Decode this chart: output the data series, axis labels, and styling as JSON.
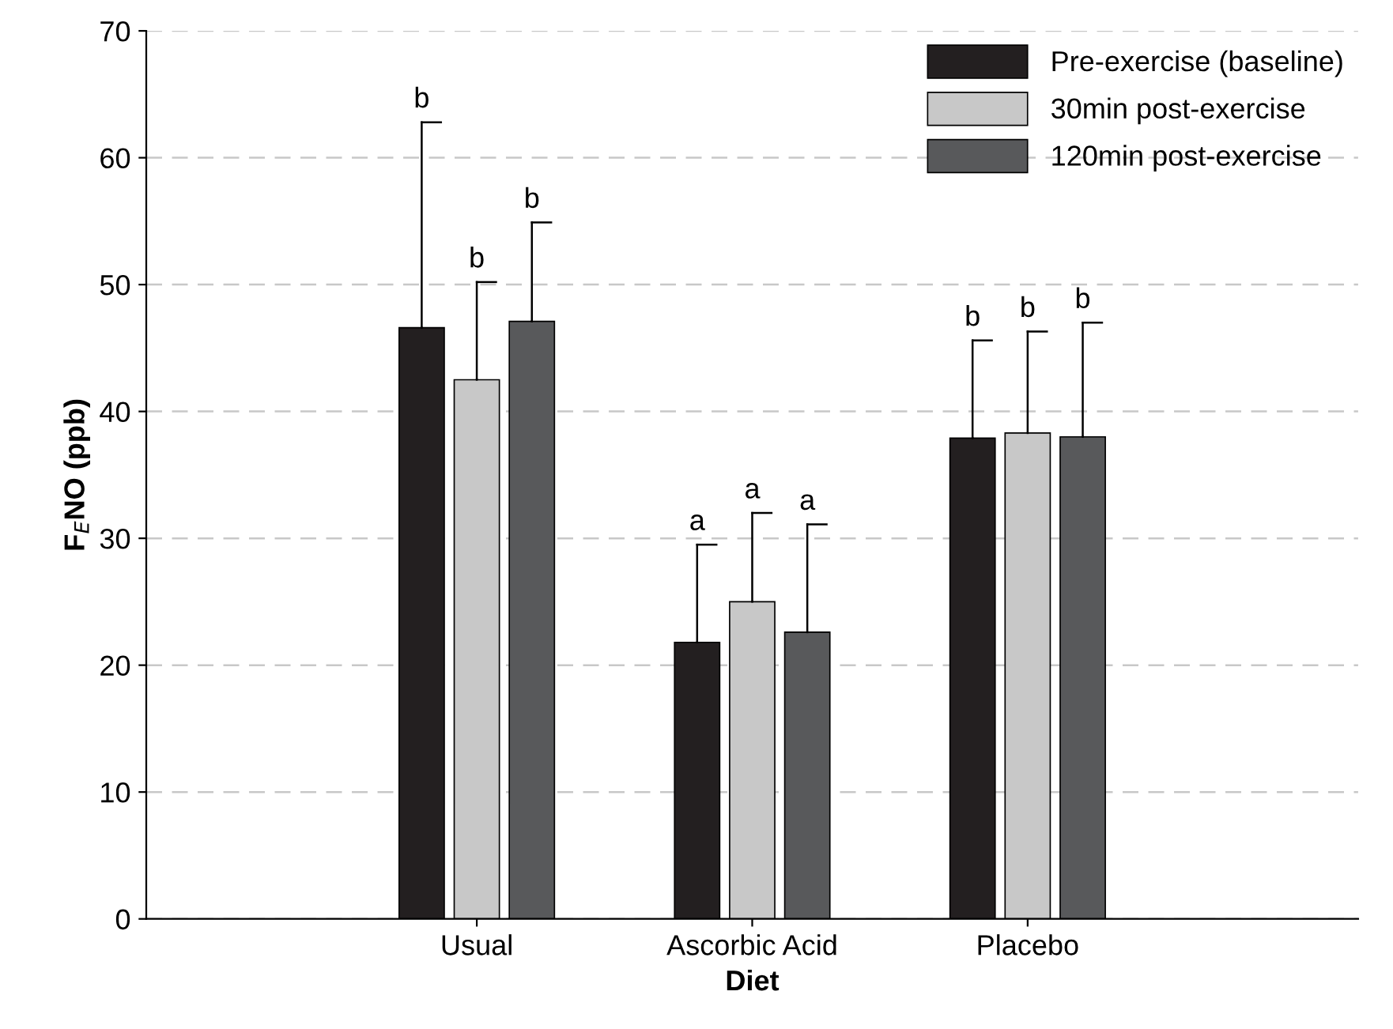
{
  "chart_data": {
    "type": "bar",
    "xlabel": "Diet",
    "ylabel": "F$_{E}$NO (ppb)",
    "categories": [
      "Usual",
      "Ascorbic Acid",
      "Placebo"
    ],
    "series": [
      {
        "name": "Pre-exercise (baseline)",
        "color": "#231f20",
        "values": [
          46.6,
          21.8,
          37.9
        ],
        "errors": [
          [
            46.6,
            62.8
          ],
          [
            21.8,
            29.5
          ],
          [
            37.9,
            45.6
          ]
        ]
      },
      {
        "name": "30min post-exercise",
        "color": "#c8c8c8",
        "values": [
          42.5,
          25.0,
          38.3
        ],
        "errors": [
          [
            42.5,
            50.2
          ],
          [
            25.0,
            32.0
          ],
          [
            38.3,
            46.3
          ]
        ]
      },
      {
        "name": "120min post-exercise",
        "color": "#58595b",
        "values": [
          47.1,
          22.6,
          38.0
        ],
        "errors": [
          [
            47.1,
            54.9
          ],
          [
            22.6,
            31.1
          ],
          [
            38.0,
            47.0
          ]
        ]
      }
    ],
    "annotations": [
      "b",
      "b",
      "b",
      "a",
      "a",
      "a",
      "b",
      "b",
      "b"
    ],
    "ylim": [
      0,
      70
    ],
    "yticks": [
      0,
      10,
      20,
      30,
      40,
      50,
      60,
      70
    ],
    "grid": "y",
    "legend": "top right"
  }
}
